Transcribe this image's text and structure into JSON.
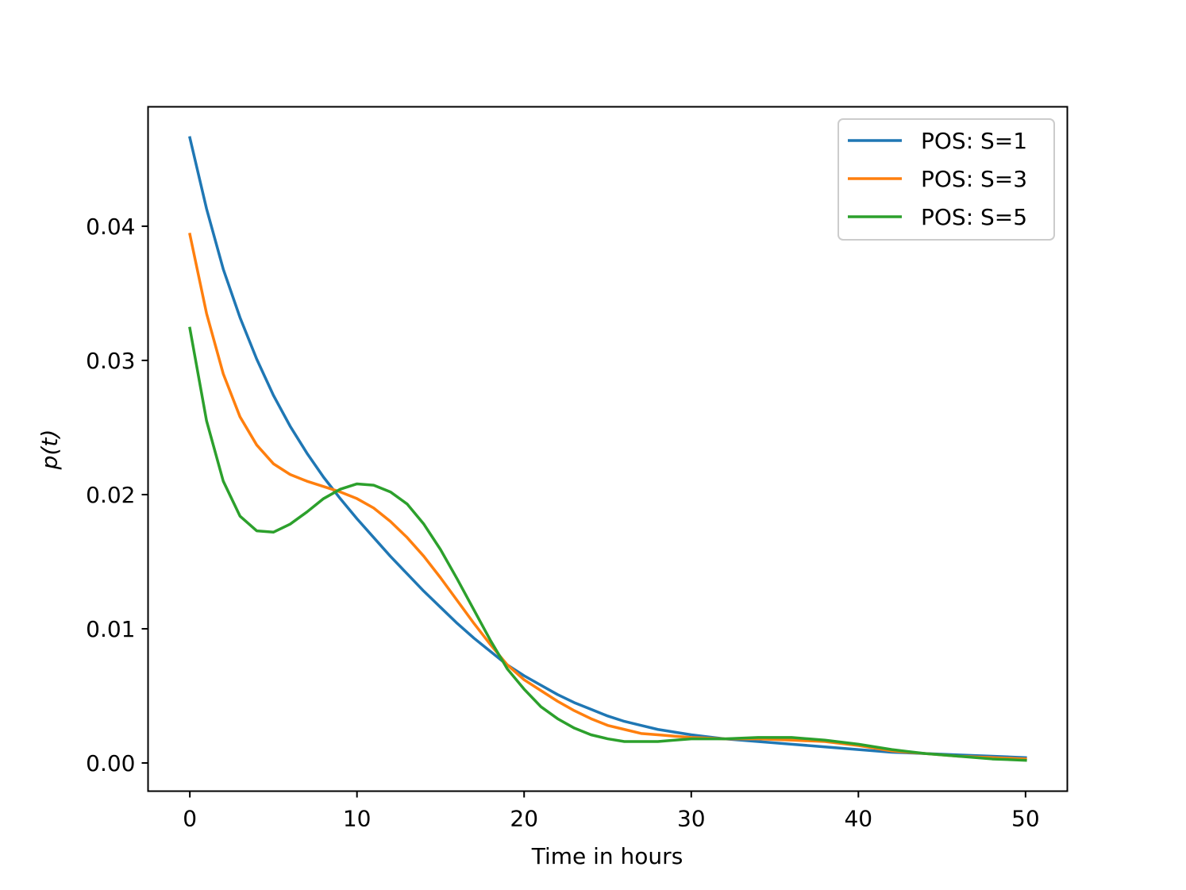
{
  "chart_data": {
    "type": "line",
    "xlabel": "Time in hours",
    "ylabel": "p(t)",
    "xlim": [
      -2.5,
      52.5
    ],
    "ylim": [
      -0.0021,
      0.0489
    ],
    "xticks": [
      0,
      10,
      20,
      30,
      40,
      50
    ],
    "xtick_labels": [
      "0",
      "10",
      "20",
      "30",
      "40",
      "50"
    ],
    "yticks": [
      0.0,
      0.01,
      0.02,
      0.03,
      0.04
    ],
    "ytick_labels": [
      "0.00",
      "0.01",
      "0.02",
      "0.03",
      "0.04"
    ],
    "grid": false,
    "legend_position": "top-right",
    "series": [
      {
        "name": "POS: S=1",
        "color": "#1f77b4",
        "x": [
          0,
          1,
          2,
          3,
          4,
          5,
          6,
          7,
          8,
          9,
          10,
          11,
          12,
          13,
          14,
          15,
          16,
          17,
          18,
          19,
          20,
          21,
          22,
          23,
          24,
          25,
          26,
          27,
          28,
          29,
          30,
          32,
          34,
          36,
          38,
          40,
          42,
          44,
          46,
          48,
          50
        ],
        "y": [
          0.0466,
          0.0413,
          0.0368,
          0.0332,
          0.0301,
          0.0274,
          0.0251,
          0.0231,
          0.0213,
          0.0197,
          0.0182,
          0.0168,
          0.0154,
          0.0141,
          0.0128,
          0.0116,
          0.0104,
          0.0093,
          0.0083,
          0.0073,
          0.0065,
          0.0058,
          0.0051,
          0.0045,
          0.004,
          0.0035,
          0.0031,
          0.0028,
          0.0025,
          0.0023,
          0.0021,
          0.0018,
          0.0016,
          0.0014,
          0.0012,
          0.001,
          0.0008,
          0.0007,
          0.0006,
          0.0005,
          0.0004
        ]
      },
      {
        "name": "POS: S=3",
        "color": "#ff7f0e",
        "x": [
          0,
          1,
          2,
          3,
          4,
          5,
          6,
          7,
          8,
          9,
          10,
          11,
          12,
          13,
          14,
          15,
          16,
          17,
          18,
          19,
          20,
          21,
          22,
          23,
          24,
          25,
          26,
          27,
          28,
          29,
          30,
          32,
          34,
          36,
          38,
          40,
          42,
          44,
          46,
          48,
          50
        ],
        "y": [
          0.0394,
          0.0335,
          0.029,
          0.0258,
          0.0237,
          0.0223,
          0.0215,
          0.021,
          0.0206,
          0.0202,
          0.0197,
          0.019,
          0.018,
          0.0168,
          0.0154,
          0.0138,
          0.0121,
          0.0104,
          0.0088,
          0.0073,
          0.0062,
          0.0054,
          0.0046,
          0.0039,
          0.0033,
          0.0028,
          0.0025,
          0.0022,
          0.0021,
          0.002,
          0.0019,
          0.0018,
          0.0018,
          0.0017,
          0.0016,
          0.0013,
          0.0009,
          0.0007,
          0.0005,
          0.0004,
          0.0003
        ]
      },
      {
        "name": "POS: S=5",
        "color": "#2ca02c",
        "x": [
          0,
          1,
          2,
          3,
          4,
          5,
          6,
          7,
          8,
          9,
          10,
          11,
          12,
          13,
          14,
          15,
          16,
          17,
          18,
          19,
          20,
          21,
          22,
          23,
          24,
          25,
          26,
          27,
          28,
          29,
          30,
          32,
          34,
          36,
          38,
          40,
          42,
          44,
          46,
          48,
          50
        ],
        "y": [
          0.0324,
          0.0255,
          0.021,
          0.0184,
          0.0173,
          0.0172,
          0.0178,
          0.0187,
          0.0197,
          0.0204,
          0.0208,
          0.0207,
          0.0202,
          0.0193,
          0.0178,
          0.0159,
          0.0137,
          0.0114,
          0.0091,
          0.007,
          0.0055,
          0.0042,
          0.0033,
          0.0026,
          0.0021,
          0.0018,
          0.0016,
          0.0016,
          0.0016,
          0.0017,
          0.0018,
          0.0018,
          0.0019,
          0.0019,
          0.0017,
          0.0014,
          0.001,
          0.0007,
          0.0005,
          0.0003,
          0.0002
        ]
      }
    ]
  }
}
